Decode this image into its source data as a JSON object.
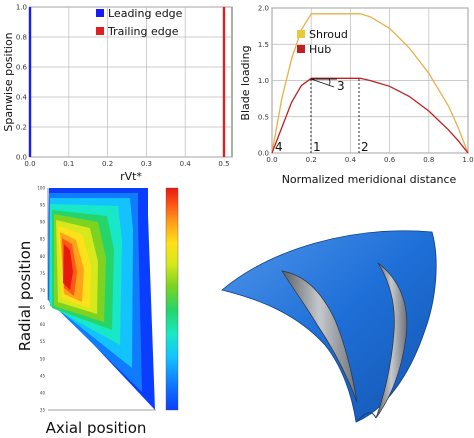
{
  "chart_data": [
    {
      "type": "line",
      "xlabel": "rVt*",
      "ylabel": "Spanwise position",
      "xlim": [
        0,
        0.5
      ],
      "ylim": [
        0,
        1
      ],
      "x_ticks": [
        "0.0",
        "0.1",
        "0.2",
        "0.3",
        "0.4",
        "0.5"
      ],
      "y_ticks": [
        "0.0",
        "0.2",
        "0.4",
        "0.6",
        "0.8",
        "1.0"
      ],
      "grid": true,
      "legend": "top-left",
      "series": [
        {
          "name": "Leading edge",
          "color": "#1a1aff",
          "x": [
            0,
            0
          ],
          "y": [
            0,
            1
          ]
        },
        {
          "name": "Trailing edge",
          "color": "#e02020",
          "x": [
            0.5,
            0.5
          ],
          "y": [
            0,
            1
          ]
        }
      ]
    },
    {
      "type": "line",
      "xlabel": "Normalized meridional distance",
      "ylabel": "Blade loading",
      "xlim": [
        0,
        1
      ],
      "ylim": [
        0,
        2
      ],
      "x_ticks": [
        "0.0",
        "0.2",
        "0.4",
        "0.6",
        "0.8",
        "1.0"
      ],
      "y_ticks": [
        "0.0",
        "0.5",
        "1.0",
        "1.5",
        "2.0"
      ],
      "grid": true,
      "legend": "top-left",
      "series": [
        {
          "name": "Shroud",
          "color": "#e8b04a",
          "x": [
            0,
            0.05,
            0.1,
            0.15,
            0.2,
            0.45,
            0.5,
            0.6,
            0.7,
            0.8,
            0.9,
            0.95,
            1.0
          ],
          "y": [
            0,
            0.75,
            1.3,
            1.7,
            1.92,
            1.92,
            1.88,
            1.72,
            1.45,
            1.1,
            0.65,
            0.35,
            0
          ]
        },
        {
          "name": "Hub",
          "color": "#c02020",
          "x": [
            0,
            0.05,
            0.1,
            0.15,
            0.2,
            0.45,
            0.5,
            0.6,
            0.7,
            0.8,
            0.9,
            0.95,
            1.0
          ],
          "y": [
            0,
            0.35,
            0.7,
            0.93,
            1.03,
            1.03,
            1.0,
            0.92,
            0.78,
            0.58,
            0.32,
            0.17,
            0
          ]
        }
      ],
      "annotations": [
        "1",
        "2",
        "3",
        "4"
      ]
    },
    {
      "type": "heatmap",
      "xlabel": "Axial position",
      "ylabel": "Radial position",
      "y_ticks": [
        "100",
        "95",
        "90",
        "85",
        "80",
        "75",
        "70",
        "65",
        "60",
        "55",
        "50",
        "45",
        "40",
        "35"
      ],
      "x_ticks": [
        "",
        "",
        ""
      ],
      "colorbar_ticks": [
        "",
        "",
        "",
        "",
        "",
        "",
        "",
        "",
        "",
        ""
      ],
      "colormap": [
        "#0b3dff",
        "#0f7bff",
        "#13c3ff",
        "#18e8c8",
        "#25d56a",
        "#7ed321",
        "#d7e81d",
        "#ffe11a",
        "#ffa31a",
        "#ff5a14",
        "#e8190f"
      ]
    }
  ],
  "blade_render": {
    "hub_color": "#1e6fd8",
    "blade_color": "#8a8f96"
  }
}
